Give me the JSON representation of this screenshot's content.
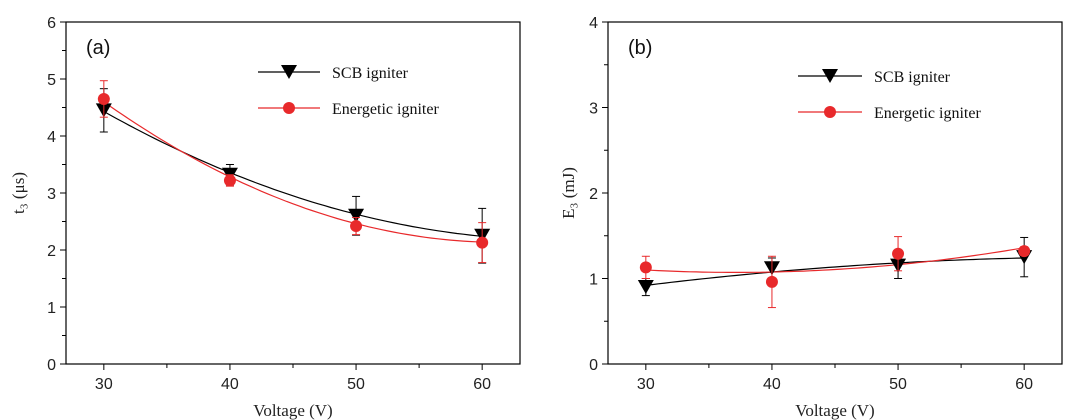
{
  "chart_data": [
    {
      "type": "scatter",
      "panel_label": "(a)",
      "xlabel": "Voltage (V)",
      "ylabel": "t₃ (μs)",
      "xlim": [
        27,
        63
      ],
      "ylim": [
        0,
        6
      ],
      "xticks": [
        30,
        40,
        50,
        60
      ],
      "yticks": [
        0,
        1,
        2,
        3,
        4,
        5,
        6
      ],
      "legend_position": "top-right",
      "series": [
        {
          "name": "SCB igniter",
          "color": "#000000",
          "marker": "triangle-down",
          "x": [
            30,
            40,
            50,
            60
          ],
          "y": [
            4.45,
            3.32,
            2.6,
            2.25
          ],
          "err": [
            0.38,
            0.18,
            0.34,
            0.48
          ],
          "fit": [
            4.43,
            3.33,
            2.57,
            2.24
          ]
        },
        {
          "name": "Energetic igniter",
          "color": "#e8292b",
          "marker": "circle",
          "x": [
            30,
            40,
            50,
            60
          ],
          "y": [
            4.65,
            3.22,
            2.42,
            2.13
          ],
          "err": [
            0.32,
            0.1,
            0.15,
            0.35
          ],
          "fit": [
            4.6,
            3.21,
            2.41,
            2.14
          ]
        }
      ]
    },
    {
      "type": "scatter",
      "panel_label": "(b)",
      "xlabel": "Voltage (V)",
      "ylabel": "E₃ (mJ)",
      "xlim": [
        27,
        63
      ],
      "ylim": [
        0,
        4
      ],
      "xticks": [
        30,
        40,
        50,
        60
      ],
      "yticks": [
        0,
        1,
        2,
        3,
        4
      ],
      "legend_position": "top-right",
      "series": [
        {
          "name": "SCB igniter",
          "color": "#000000",
          "marker": "triangle-down",
          "x": [
            30,
            40,
            50,
            60
          ],
          "y": [
            0.9,
            1.12,
            1.15,
            1.25
          ],
          "err": [
            0.1,
            0.12,
            0.15,
            0.23
          ],
          "fit": [
            0.92,
            1.08,
            1.19,
            1.24
          ]
        },
        {
          "name": "Energetic igniter",
          "color": "#e8292b",
          "marker": "circle",
          "x": [
            30,
            40,
            50,
            60
          ],
          "y": [
            1.13,
            0.96,
            1.29,
            1.32
          ],
          "err": [
            0.13,
            0.3,
            0.2,
            0.05
          ],
          "fit": [
            1.1,
            1.06,
            1.15,
            1.36
          ]
        }
      ]
    }
  ]
}
